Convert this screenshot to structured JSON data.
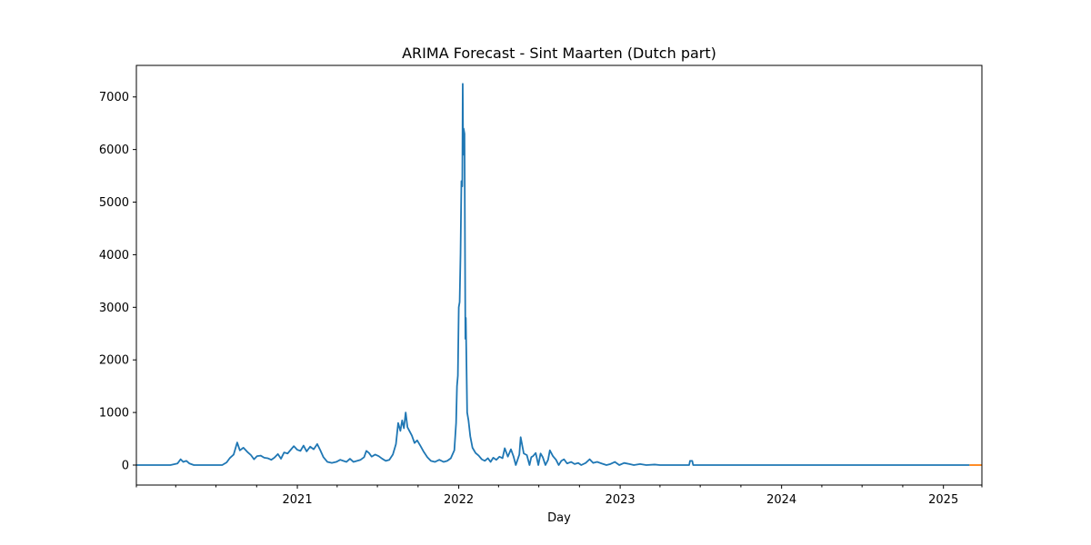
{
  "chart_data": {
    "type": "line",
    "title": "ARIMA Forecast - Sint Maarten (Dutch part)",
    "xlabel": "Day",
    "ylabel": "",
    "x_type": "date",
    "xlim": [
      "2020-01-03",
      "2025-03-29"
    ],
    "ylim": [
      -380,
      7600
    ],
    "x_ticks": [
      {
        "date": "2021-01-01",
        "label": "2021"
      },
      {
        "date": "2022-01-01",
        "label": "2022"
      },
      {
        "date": "2023-01-01",
        "label": "2023"
      },
      {
        "date": "2024-01-01",
        "label": "2024"
      },
      {
        "date": "2025-01-01",
        "label": "2025"
      }
    ],
    "x_minor_ticks": [
      "2020-01-03",
      "2020-04-01",
      "2020-07-01",
      "2020-10-01",
      "2021-04-01",
      "2021-07-01",
      "2021-10-01",
      "2022-04-01",
      "2022-07-01",
      "2022-10-01",
      "2023-04-01",
      "2023-07-01",
      "2023-10-01",
      "2024-04-01",
      "2024-07-01",
      "2024-10-01",
      "2025-03-29"
    ],
    "y_ticks": [
      0,
      1000,
      2000,
      3000,
      4000,
      5000,
      6000,
      7000
    ],
    "grid": false,
    "legend": "none",
    "series": [
      {
        "color": "#1f77b4",
        "points": [
          [
            "2020-01-03",
            0
          ],
          [
            "2020-03-20",
            0
          ],
          [
            "2020-04-05",
            30
          ],
          [
            "2020-04-12",
            110
          ],
          [
            "2020-04-18",
            60
          ],
          [
            "2020-04-25",
            80
          ],
          [
            "2020-05-02",
            30
          ],
          [
            "2020-05-12",
            0
          ],
          [
            "2020-07-15",
            0
          ],
          [
            "2020-07-25",
            50
          ],
          [
            "2020-08-01",
            130
          ],
          [
            "2020-08-10",
            200
          ],
          [
            "2020-08-18",
            430
          ],
          [
            "2020-08-24",
            280
          ],
          [
            "2020-09-01",
            330
          ],
          [
            "2020-09-10",
            250
          ],
          [
            "2020-09-18",
            190
          ],
          [
            "2020-09-25",
            110
          ],
          [
            "2020-10-02",
            170
          ],
          [
            "2020-10-10",
            180
          ],
          [
            "2020-10-18",
            140
          ],
          [
            "2020-10-26",
            130
          ],
          [
            "2020-11-03",
            100
          ],
          [
            "2020-11-10",
            140
          ],
          [
            "2020-11-18",
            210
          ],
          [
            "2020-11-25",
            120
          ],
          [
            "2020-12-02",
            240
          ],
          [
            "2020-12-10",
            220
          ],
          [
            "2020-12-18",
            300
          ],
          [
            "2020-12-24",
            360
          ],
          [
            "2021-01-01",
            290
          ],
          [
            "2021-01-08",
            270
          ],
          [
            "2021-01-15",
            370
          ],
          [
            "2021-01-22",
            260
          ],
          [
            "2021-01-30",
            350
          ],
          [
            "2021-02-07",
            300
          ],
          [
            "2021-02-15",
            400
          ],
          [
            "2021-02-22",
            280
          ],
          [
            "2021-03-01",
            150
          ],
          [
            "2021-03-10",
            60
          ],
          [
            "2021-03-20",
            40
          ],
          [
            "2021-03-30",
            60
          ],
          [
            "2021-04-08",
            100
          ],
          [
            "2021-04-15",
            80
          ],
          [
            "2021-04-22",
            60
          ],
          [
            "2021-04-30",
            120
          ],
          [
            "2021-05-08",
            60
          ],
          [
            "2021-05-16",
            80
          ],
          [
            "2021-05-24",
            100
          ],
          [
            "2021-06-01",
            150
          ],
          [
            "2021-06-06",
            270
          ],
          [
            "2021-06-12",
            230
          ],
          [
            "2021-06-18",
            160
          ],
          [
            "2021-06-26",
            200
          ],
          [
            "2021-07-04",
            170
          ],
          [
            "2021-07-12",
            120
          ],
          [
            "2021-07-20",
            80
          ],
          [
            "2021-07-28",
            100
          ],
          [
            "2021-08-05",
            200
          ],
          [
            "2021-08-12",
            400
          ],
          [
            "2021-08-17",
            800
          ],
          [
            "2021-08-22",
            650
          ],
          [
            "2021-08-26",
            850
          ],
          [
            "2021-08-30",
            700
          ],
          [
            "2021-09-03",
            1000
          ],
          [
            "2021-09-07",
            720
          ],
          [
            "2021-09-12",
            640
          ],
          [
            "2021-09-17",
            560
          ],
          [
            "2021-09-23",
            420
          ],
          [
            "2021-09-29",
            470
          ],
          [
            "2021-10-06",
            370
          ],
          [
            "2021-10-14",
            250
          ],
          [
            "2021-10-22",
            150
          ],
          [
            "2021-10-30",
            80
          ],
          [
            "2021-11-08",
            60
          ],
          [
            "2021-11-18",
            100
          ],
          [
            "2021-11-28",
            60
          ],
          [
            "2021-12-06",
            80
          ],
          [
            "2021-12-14",
            130
          ],
          [
            "2021-12-22",
            280
          ],
          [
            "2021-12-26",
            800
          ],
          [
            "2021-12-28",
            1500
          ],
          [
            "2021-12-30",
            1700
          ],
          [
            "2022-01-01",
            3000
          ],
          [
            "2022-01-03",
            3100
          ],
          [
            "2022-01-05",
            4000
          ],
          [
            "2022-01-07",
            5400
          ],
          [
            "2022-01-09",
            5300
          ],
          [
            "2022-01-10",
            7250
          ],
          [
            "2022-01-11",
            5900
          ],
          [
            "2022-01-12",
            6400
          ],
          [
            "2022-01-14",
            6300
          ],
          [
            "2022-01-16",
            2400
          ],
          [
            "2022-01-17",
            2800
          ],
          [
            "2022-01-20",
            1000
          ],
          [
            "2022-01-23",
            850
          ],
          [
            "2022-01-27",
            550
          ],
          [
            "2022-02-01",
            330
          ],
          [
            "2022-02-08",
            230
          ],
          [
            "2022-02-15",
            180
          ],
          [
            "2022-02-22",
            110
          ],
          [
            "2022-03-01",
            80
          ],
          [
            "2022-03-08",
            130
          ],
          [
            "2022-03-14",
            60
          ],
          [
            "2022-03-20",
            140
          ],
          [
            "2022-03-27",
            100
          ],
          [
            "2022-04-03",
            160
          ],
          [
            "2022-04-10",
            130
          ],
          [
            "2022-04-15",
            320
          ],
          [
            "2022-04-22",
            160
          ],
          [
            "2022-04-29",
            300
          ],
          [
            "2022-05-05",
            160
          ],
          [
            "2022-05-10",
            0
          ],
          [
            "2022-05-18",
            200
          ],
          [
            "2022-05-21",
            530
          ],
          [
            "2022-05-28",
            220
          ],
          [
            "2022-06-04",
            190
          ],
          [
            "2022-06-10",
            0
          ],
          [
            "2022-06-14",
            150
          ],
          [
            "2022-06-18",
            170
          ],
          [
            "2022-06-24",
            230
          ],
          [
            "2022-06-30",
            0
          ],
          [
            "2022-07-05",
            220
          ],
          [
            "2022-07-10",
            150
          ],
          [
            "2022-07-16",
            0
          ],
          [
            "2022-07-22",
            100
          ],
          [
            "2022-07-26",
            280
          ],
          [
            "2022-08-02",
            170
          ],
          [
            "2022-08-09",
            100
          ],
          [
            "2022-08-15",
            0
          ],
          [
            "2022-08-21",
            80
          ],
          [
            "2022-08-27",
            110
          ],
          [
            "2022-09-03",
            30
          ],
          [
            "2022-09-12",
            60
          ],
          [
            "2022-09-20",
            20
          ],
          [
            "2022-09-28",
            40
          ],
          [
            "2022-10-05",
            0
          ],
          [
            "2022-10-15",
            40
          ],
          [
            "2022-10-24",
            110
          ],
          [
            "2022-11-01",
            40
          ],
          [
            "2022-11-10",
            60
          ],
          [
            "2022-11-20",
            30
          ],
          [
            "2022-12-01",
            0
          ],
          [
            "2022-12-10",
            20
          ],
          [
            "2022-12-20",
            60
          ],
          [
            "2022-12-30",
            0
          ],
          [
            "2023-01-10",
            40
          ],
          [
            "2023-01-22",
            20
          ],
          [
            "2023-02-01",
            0
          ],
          [
            "2023-02-15",
            20
          ],
          [
            "2023-03-01",
            0
          ],
          [
            "2023-03-20",
            10
          ],
          [
            "2023-04-01",
            0
          ],
          [
            "2023-06-06",
            0
          ],
          [
            "2023-06-08",
            80
          ],
          [
            "2023-06-13",
            80
          ],
          [
            "2023-06-15",
            0
          ],
          [
            "2025-03-01",
            0
          ]
        ]
      },
      {
        "color": "#ff7f0e",
        "points": [
          [
            "2025-03-01",
            0
          ],
          [
            "2025-03-29",
            0
          ]
        ]
      }
    ]
  }
}
